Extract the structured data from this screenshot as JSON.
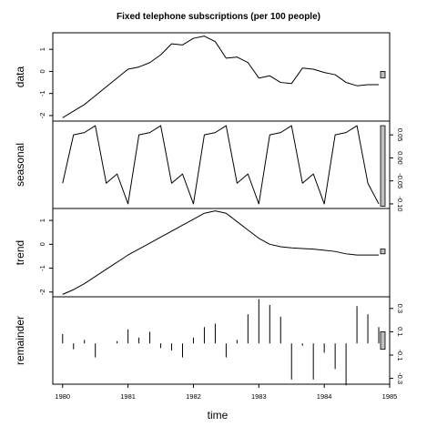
{
  "chart_data": {
    "type": "line",
    "title": "Fixed telephone subscriptions (per 100 people)",
    "xlabel": "time",
    "xlim": [
      1979.85,
      1985.0
    ],
    "x_ticks": [
      1980,
      1981,
      1982,
      1983,
      1984,
      1985
    ],
    "time": [
      1980.0,
      1980.1667,
      1980.3333,
      1980.5,
      1980.6667,
      1980.8333,
      1981.0,
      1981.1667,
      1981.3333,
      1981.5,
      1981.6667,
      1981.8333,
      1982.0,
      1982.1667,
      1982.3333,
      1982.5,
      1982.6667,
      1982.8333,
      1983.0,
      1983.1667,
      1983.3333,
      1983.5,
      1983.6667,
      1983.8333,
      1984.0,
      1984.1667,
      1984.3333,
      1984.5,
      1984.6667,
      1984.8333
    ],
    "panels": [
      {
        "name": "data",
        "style": "line",
        "ylim": [
          -2.25,
          1.75
        ],
        "y_ticks": [
          -2,
          -1,
          0,
          1
        ],
        "range_bar": [
          -0.3,
          0.0
        ],
        "values": [
          -2.1,
          -1.8,
          -1.5,
          -1.1,
          -0.7,
          -0.3,
          0.1,
          0.2,
          0.4,
          0.75,
          1.25,
          1.2,
          1.5,
          1.6,
          1.35,
          0.6,
          0.65,
          0.4,
          -0.3,
          -0.2,
          -0.5,
          -0.55,
          0.15,
          0.1,
          -0.05,
          -0.15,
          -0.5,
          -0.65,
          -0.6,
          -0.6
        ]
      },
      {
        "name": "seasonal",
        "style": "line",
        "ylim": [
          -0.11,
          0.08
        ],
        "y_ticks": [
          -0.1,
          -0.05,
          0.0,
          0.05
        ],
        "range_bar": [
          -0.105,
          0.07
        ],
        "values": [
          -0.055,
          0.05,
          0.055,
          0.07,
          -0.055,
          -0.035,
          -0.1,
          0.05,
          0.055,
          0.07,
          -0.055,
          -0.035,
          -0.1,
          0.05,
          0.055,
          0.07,
          -0.055,
          -0.035,
          -0.1,
          0.05,
          0.055,
          0.07,
          -0.055,
          -0.035,
          -0.1,
          0.05,
          0.055,
          0.07,
          -0.055,
          -0.1
        ]
      },
      {
        "name": "trend",
        "style": "line",
        "ylim": [
          -2.2,
          1.5
        ],
        "y_ticks": [
          -2.0,
          -1.0,
          0.0,
          1.0
        ],
        "range_bar": [
          -0.4,
          -0.2
        ],
        "values": [
          -2.1,
          -1.9,
          -1.65,
          -1.35,
          -1.05,
          -0.75,
          -0.45,
          -0.2,
          0.05,
          0.3,
          0.55,
          0.8,
          1.05,
          1.3,
          1.4,
          1.3,
          0.95,
          0.6,
          0.25,
          0.0,
          -0.1,
          -0.15,
          -0.18,
          -0.2,
          -0.25,
          -0.3,
          -0.4,
          -0.45,
          -0.45,
          -0.45
        ]
      },
      {
        "name": "remainder",
        "style": "bars",
        "ylim": [
          -0.35,
          0.4
        ],
        "y_ticks": [
          -0.3,
          -0.1,
          0.1,
          0.3
        ],
        "range_bar": [
          -0.05,
          0.1
        ],
        "values": [
          0.08,
          -0.05,
          0.03,
          -0.12,
          0.0,
          0.02,
          0.12,
          0.05,
          0.1,
          -0.04,
          -0.06,
          -0.12,
          0.05,
          0.14,
          0.17,
          -0.12,
          0.03,
          0.25,
          0.38,
          0.33,
          0.23,
          -0.31,
          -0.02,
          -0.31,
          -0.08,
          -0.22,
          -0.36,
          0.32,
          0.25,
          0.14
        ]
      }
    ]
  }
}
